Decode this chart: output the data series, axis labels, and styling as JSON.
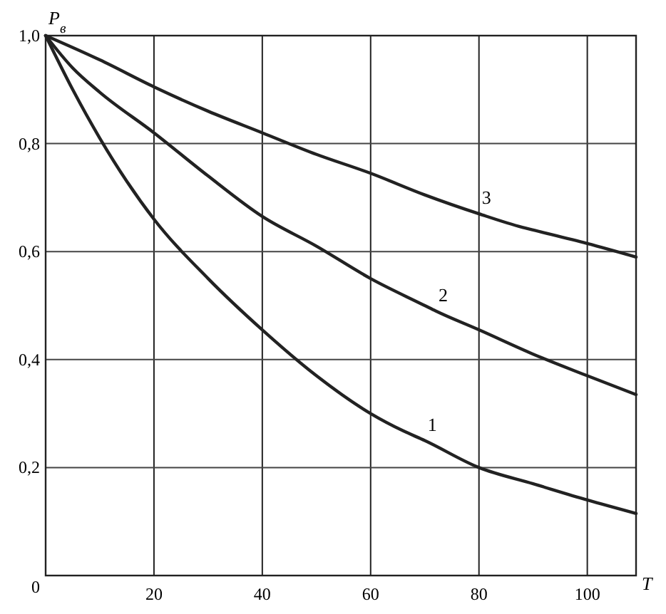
{
  "chart_data": {
    "type": "line",
    "xlabel": "T",
    "ylabel": "P$_{в}$",
    "xlim": [
      0,
      109
    ],
    "ylim": [
      0,
      1
    ],
    "xticks": [
      20,
      40,
      60,
      80,
      100
    ],
    "yticks": [
      {
        "value": 0,
        "label": "0"
      },
      {
        "value": 0.2,
        "label": "0,2"
      },
      {
        "value": 0.4,
        "label": "0,4"
      },
      {
        "value": 0.6,
        "label": "0,6"
      },
      {
        "value": 0.8,
        "label": "0,8"
      },
      {
        "value": 1,
        "label": "1,0"
      }
    ],
    "grid": true,
    "marker": "none",
    "line_style": "solid",
    "series": [
      {
        "name": "1",
        "color": "#222222",
        "x": [
          0,
          5,
          10,
          15,
          20,
          30,
          40,
          50,
          60,
          66,
          70,
          80,
          90,
          100,
          109
        ],
        "values": [
          1,
          0.9,
          0.81,
          0.73,
          0.66,
          0.55,
          0.455,
          0.37,
          0.3,
          0.268,
          0.25,
          0.2,
          0.17,
          0.14,
          0.115
        ]
      },
      {
        "name": "2",
        "color": "#222222",
        "x": [
          0,
          5,
          10,
          20,
          30,
          40,
          50,
          60,
          70,
          72,
          80,
          90,
          100,
          109
        ],
        "values": [
          1,
          0.94,
          0.895,
          0.82,
          0.74,
          0.665,
          0.61,
          0.55,
          0.5,
          0.49,
          0.455,
          0.41,
          0.37,
          0.335
        ]
      },
      {
        "name": "3",
        "color": "#222222",
        "x": [
          0,
          10,
          20,
          30,
          40,
          50,
          60,
          70,
          80,
          88,
          90,
          100,
          109
        ],
        "values": [
          1,
          0.955,
          0.905,
          0.86,
          0.82,
          0.78,
          0.745,
          0.705,
          0.67,
          0.645,
          0.64,
          0.615,
          0.59
        ]
      }
    ]
  }
}
